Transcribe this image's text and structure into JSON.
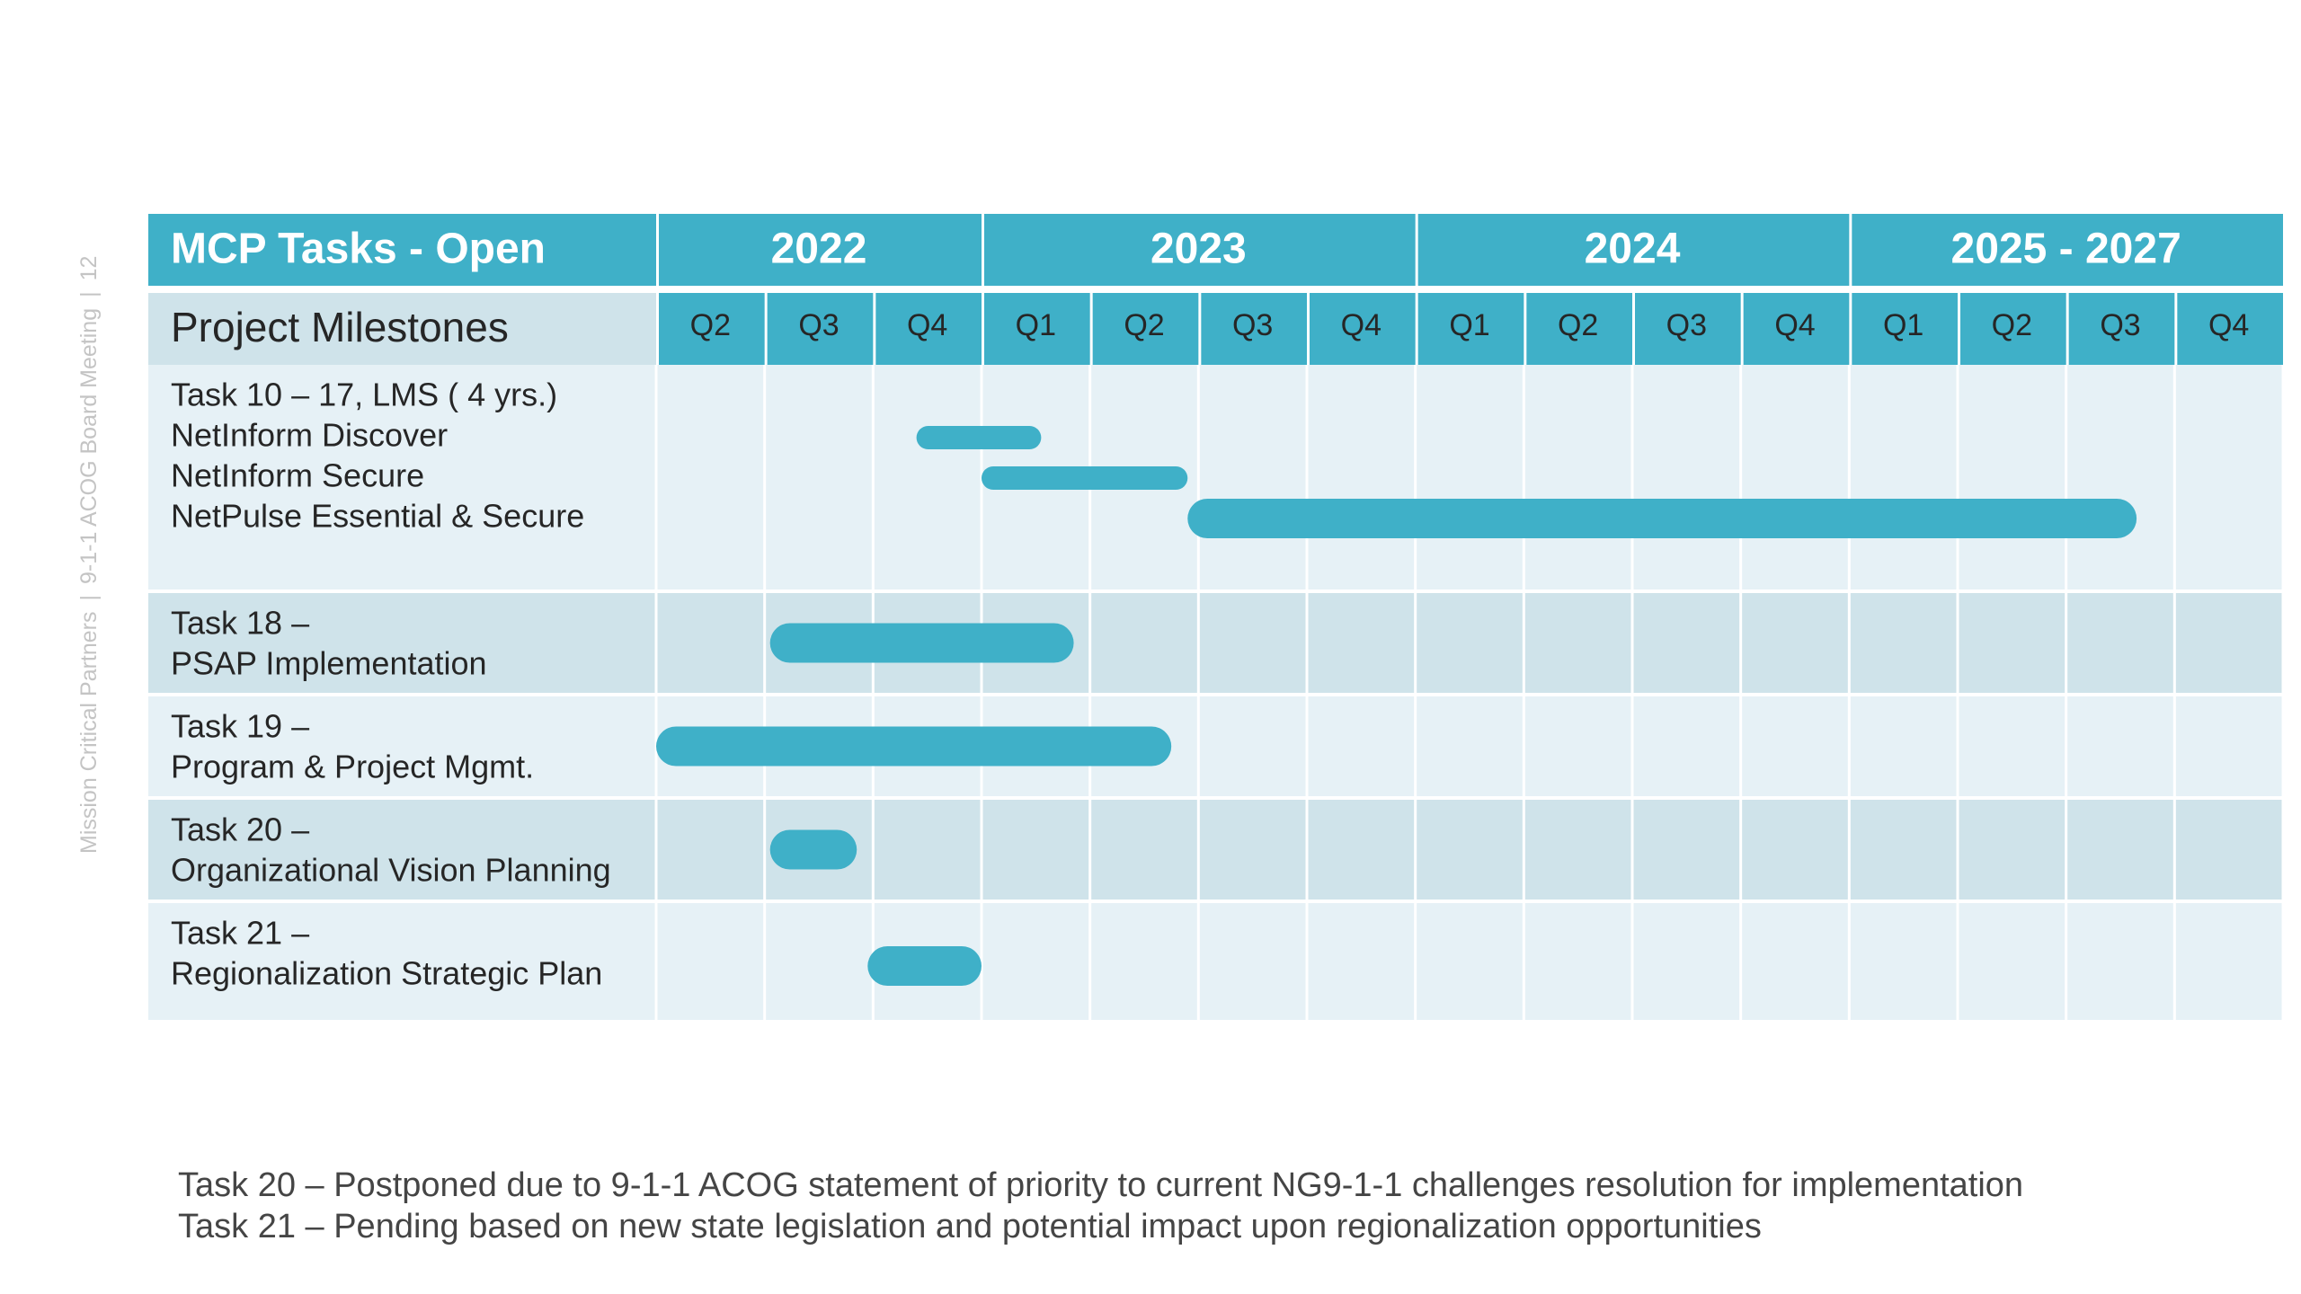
{
  "side_label": {
    "page_number": "12",
    "company": "Mission Critical Partners",
    "meeting": "9-1-1 ACOG Board Meeting",
    "separator": "|"
  },
  "colors": {
    "header": "#3fb0c8",
    "bar": "#3fb0c8",
    "row_light": "#e6f1f6",
    "row_dark": "#cfe3ea",
    "grid": "#ffffff",
    "text": "#262626",
    "header_text": "#ffffff"
  },
  "chart_data": {
    "type": "gantt",
    "corner_label": "MCP Tasks - Open",
    "subheader_label": "Project Milestones",
    "years": [
      {
        "label": "2022",
        "span": 3
      },
      {
        "label": "2023",
        "span": 4
      },
      {
        "label": "2024",
        "span": 4
      },
      {
        "label": "2025 - 2027",
        "span": 4
      }
    ],
    "quarters": [
      "Q2",
      "Q3",
      "Q4",
      "Q1",
      "Q2",
      "Q3",
      "Q4",
      "Q1",
      "Q2",
      "Q3",
      "Q4",
      "Q1",
      "Q2",
      "Q3",
      "Q4"
    ],
    "rows": [
      {
        "label_lines": [
          "Task 10 – 17, LMS ( 4 yrs.)",
          "NetInform Discover",
          "NetInform Secure",
          "NetPulse Essential & Secure"
        ],
        "bars": [
          {
            "line": 1,
            "start": 2.4,
            "end": 3.55,
            "thin": true
          },
          {
            "line": 2,
            "start": 3.0,
            "end": 4.9,
            "thin": true
          },
          {
            "line": 3,
            "start": 4.9,
            "end": 13.65,
            "thin": false
          }
        ]
      },
      {
        "label_lines": [
          "Task 18 –",
          "PSAP Implementation"
        ],
        "bars": [
          {
            "start": 1.05,
            "end": 3.85
          }
        ]
      },
      {
        "label_lines": [
          "Task 19 –",
          "Program & Project Mgmt."
        ],
        "bars": [
          {
            "start": 0.0,
            "end": 4.75
          }
        ]
      },
      {
        "label_lines": [
          "Task 20 –",
          "Organizational Vision Planning"
        ],
        "bars": [
          {
            "start": 1.05,
            "end": 1.85
          }
        ]
      },
      {
        "label_lines": [
          "Task 21 –",
          "Regionalization Strategic Plan"
        ],
        "bars": [
          {
            "start": 1.95,
            "end": 3.0
          }
        ]
      }
    ]
  },
  "notes": [
    "Task 20 – Postponed due to 9-1-1 ACOG statement of priority to current NG9-1-1 challenges resolution for implementation",
    "Task 21 – Pending based on new state legislation and potential impact upon regionalization opportunities"
  ]
}
